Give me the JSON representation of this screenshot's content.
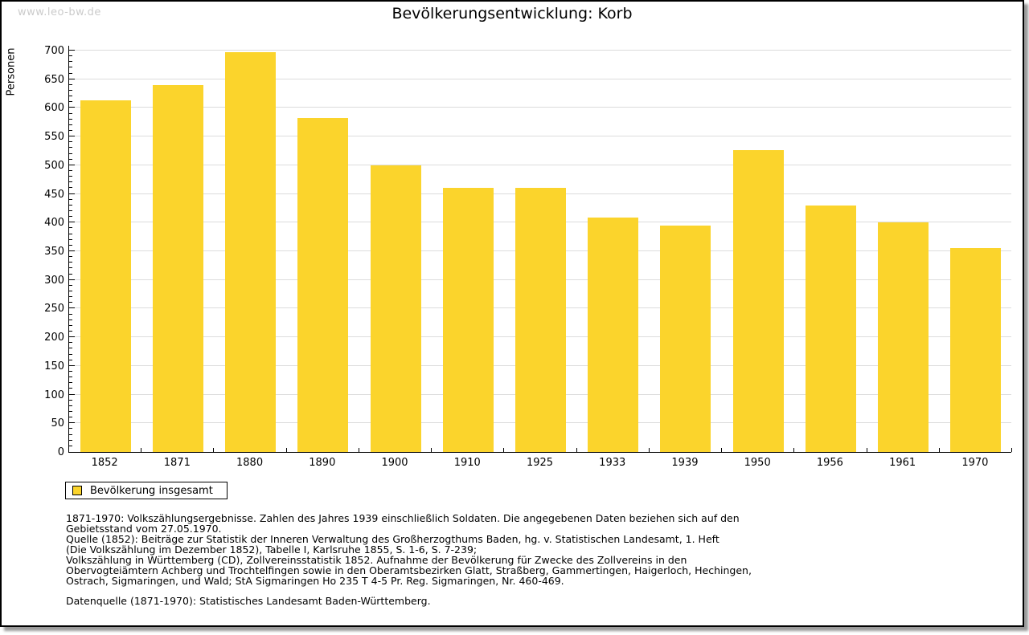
{
  "watermark": "www.leo-bw.de",
  "title": "Bevölkerungsentwicklung: Korb",
  "chart_data": {
    "type": "bar",
    "title": "Bevölkerungsentwicklung: Korb",
    "xlabel": "",
    "ylabel": "Personen",
    "categories": [
      "1852",
      "1871",
      "1880",
      "1890",
      "1900",
      "1910",
      "1925",
      "1933",
      "1939",
      "1950",
      "1956",
      "1961",
      "1970"
    ],
    "values": [
      613,
      640,
      697,
      583,
      500,
      460,
      461,
      409,
      395,
      527,
      430,
      400,
      356
    ],
    "ylim": [
      0,
      700
    ],
    "ytick_step": 50,
    "yminor_tick_step": 10,
    "grid": true,
    "bar_color": "#fbd42c",
    "gridline_color": "#dcdcdc",
    "legend_entries": [
      "Bevölkerung insgesamt"
    ],
    "legend_position": "bottom-left"
  },
  "legend": {
    "label": "Bevölkerung insgesamt"
  },
  "footnotes": {
    "lines": [
      "1871-1970: Volkszählungsergebnisse. Zahlen des Jahres 1939 einschließlich Soldaten. Die angegebenen Daten beziehen sich auf den",
      "Gebietsstand vom 27.05.1970.",
      "Quelle (1852): Beiträge zur Statistik der Inneren Verwaltung des Großherzogthums Baden, hg. v. Statistischen Landesamt, 1. Heft",
      "(Die Volkszählung im Dezember 1852), Tabelle I, Karlsruhe 1855, S. 1-6, S. 7-239;",
      "Volkszählung in Württemberg (CD), Zollvereinsstatistik 1852. Aufnahme der Bevölkerung für Zwecke des Zollvereins in den",
      "Obervogteiämtern Achberg und Trochtelfingen sowie in den Oberamtsbezirken Glatt, Straßberg, Gammertingen, Haigerloch, Hechingen,",
      "Ostrach, Sigmaringen, und Wald; StA Sigmaringen Ho 235 T 4-5 Pr. Reg. Sigmaringen, Nr. 460-469."
    ],
    "datasource": "Datenquelle (1871-1970): Statistisches Landesamt Baden-Württemberg."
  },
  "colors": {
    "bar": "#fbd42c",
    "gridline": "#dcdcdc",
    "watermark": "#cbcbcb",
    "frame_border": "#000000",
    "frame_shadow": "#9a9a9a"
  }
}
